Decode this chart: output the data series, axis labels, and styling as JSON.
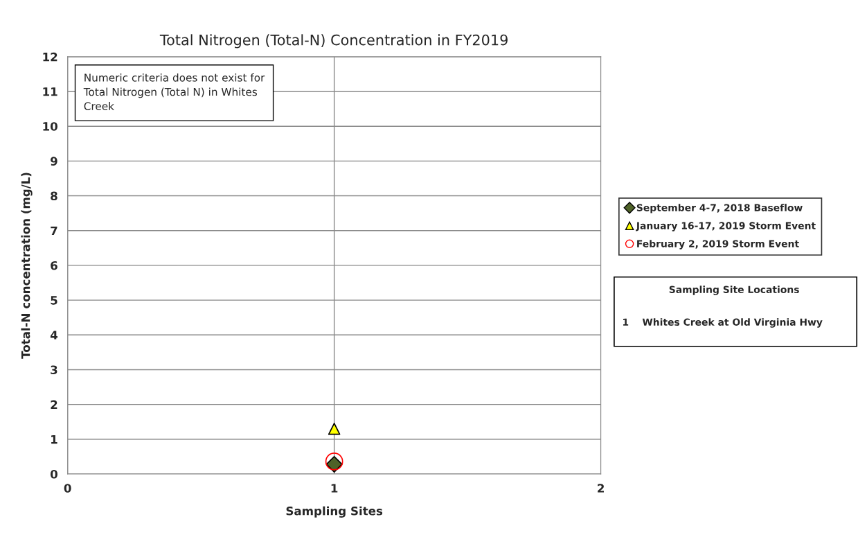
{
  "chart_data": {
    "type": "scatter",
    "x": [
      1
    ],
    "title": "Total Nitrogen (Total-N) Concentration in FY2019",
    "xlabel": "Sampling Sites",
    "ylabel": "Total-N concentration (mg/L)",
    "xlim": [
      0,
      2
    ],
    "xticks": [
      0,
      1,
      2
    ],
    "ylim": [
      0,
      12
    ],
    "yticks": [
      0,
      1,
      2,
      3,
      4,
      5,
      6,
      7,
      8,
      9,
      10,
      11,
      12
    ],
    "grid": true,
    "legend": "right",
    "series": [
      {
        "name": "September 4-7, 2018 Baseflow",
        "color": "#4f6228",
        "marker": "diamond",
        "values": [
          0.28
        ]
      },
      {
        "name": "January 16-17, 2019 Storm Event",
        "color": "#ffff00",
        "marker": "triangle",
        "values": [
          1.3
        ]
      },
      {
        "name": "February 2, 2019 Storm Event",
        "color": "#ff0000",
        "marker": "circle",
        "values": [
          0.36
        ]
      }
    ],
    "annotations": [
      "Numeric criteria does not exist for\nTotal Nitrogen (Total N) in Whites\nCreek",
      "Sampling Site Locations",
      "1    Whites Creek at Old Virginia Hwy"
    ]
  }
}
